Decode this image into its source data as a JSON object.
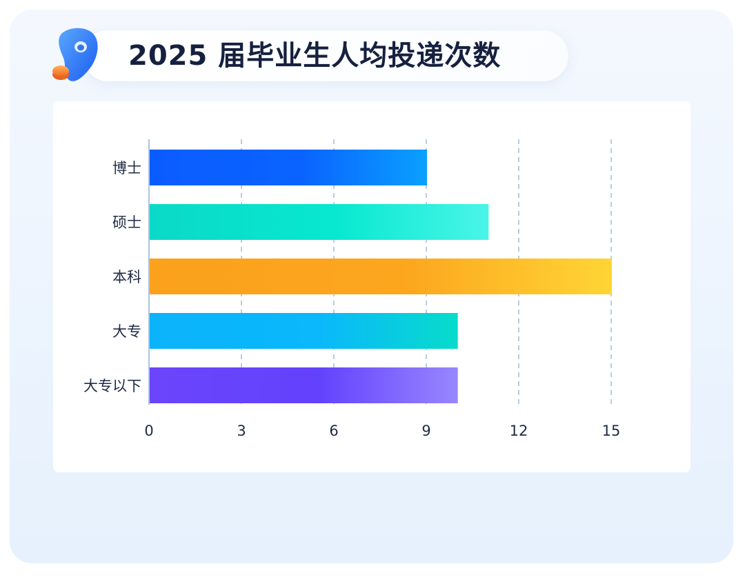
{
  "title": "2025 届毕业生人均投递次数",
  "icons": {
    "logo": "rocket-logo-icon"
  },
  "colors": {
    "background_top": "#f4f8fe",
    "background_bottom": "#e6f1fd",
    "title_text": "#16203f",
    "grid": "#9fbbd8"
  },
  "chart_data": {
    "type": "bar",
    "orientation": "horizontal",
    "categories": [
      "博士",
      "硕士",
      "本科",
      "大专",
      "大专以下"
    ],
    "values": [
      9,
      11,
      15,
      10,
      10
    ],
    "xlim": [
      0,
      15
    ],
    "xticks": [
      "0",
      "3",
      "6",
      "9",
      "12",
      "15"
    ],
    "grid": "vertical dashed",
    "legend": "none",
    "bar_gradients": [
      [
        "#0b5cff",
        "#0a63ff",
        "#0aa0ff"
      ],
      [
        "#0ad9c8",
        "#08e8d0",
        "#4af5e8"
      ],
      [
        "#fba11c",
        "#fca61e",
        "#ffd535"
      ],
      [
        "#0bb3fb",
        "#0ab8fb",
        "#07dccb"
      ],
      [
        "#6a45fb",
        "#6342fd",
        "#9886ff"
      ]
    ]
  }
}
